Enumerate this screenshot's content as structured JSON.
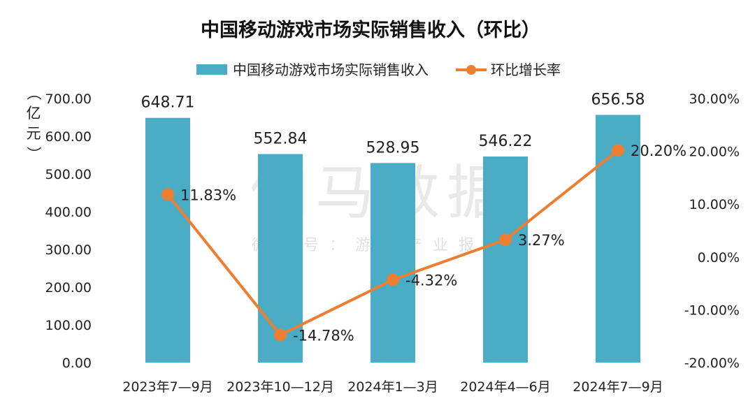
{
  "chart_data": {
    "type": "bar+line",
    "title": "中国移动游戏市场实际销售收入（环比）",
    "ylabel": "（亿元）",
    "categories": [
      "2023年7—9月",
      "2023年10—12月",
      "2024年1—3月",
      "2024年4—6月",
      "2024年7—9月"
    ],
    "series": [
      {
        "name": "中国移动游戏市场实际销售收入",
        "type": "bar",
        "axis": "left",
        "values": [
          648.71,
          552.84,
          528.95,
          546.22,
          656.58
        ],
        "labels": [
          "648.71",
          "552.84",
          "528.95",
          "546.22",
          "656.58"
        ],
        "color": "#4bacc6"
      },
      {
        "name": "环比增长率",
        "type": "line",
        "axis": "right",
        "values": [
          11.83,
          -14.78,
          -4.32,
          3.27,
          20.2
        ],
        "labels": [
          "11.83%",
          "-14.78%",
          "-4.32%",
          "3.27%",
          "20.20%"
        ],
        "color": "#ed7d31"
      }
    ],
    "y_left": {
      "min": 0,
      "max": 700,
      "ticks": [
        "0.00",
        "100.00",
        "200.00",
        "300.00",
        "400.00",
        "500.00",
        "600.00",
        "700.00"
      ]
    },
    "y_right": {
      "min": -20,
      "max": 30,
      "ticks": [
        "-20.00%",
        "-10.00%",
        "0.00%",
        "10.00%",
        "20.00%",
        "30.00%"
      ]
    },
    "legend_position": "top-center",
    "grid": false
  },
  "watermark": {
    "main": "伽马数据",
    "sub": "微信号：游戏产业报告"
  }
}
